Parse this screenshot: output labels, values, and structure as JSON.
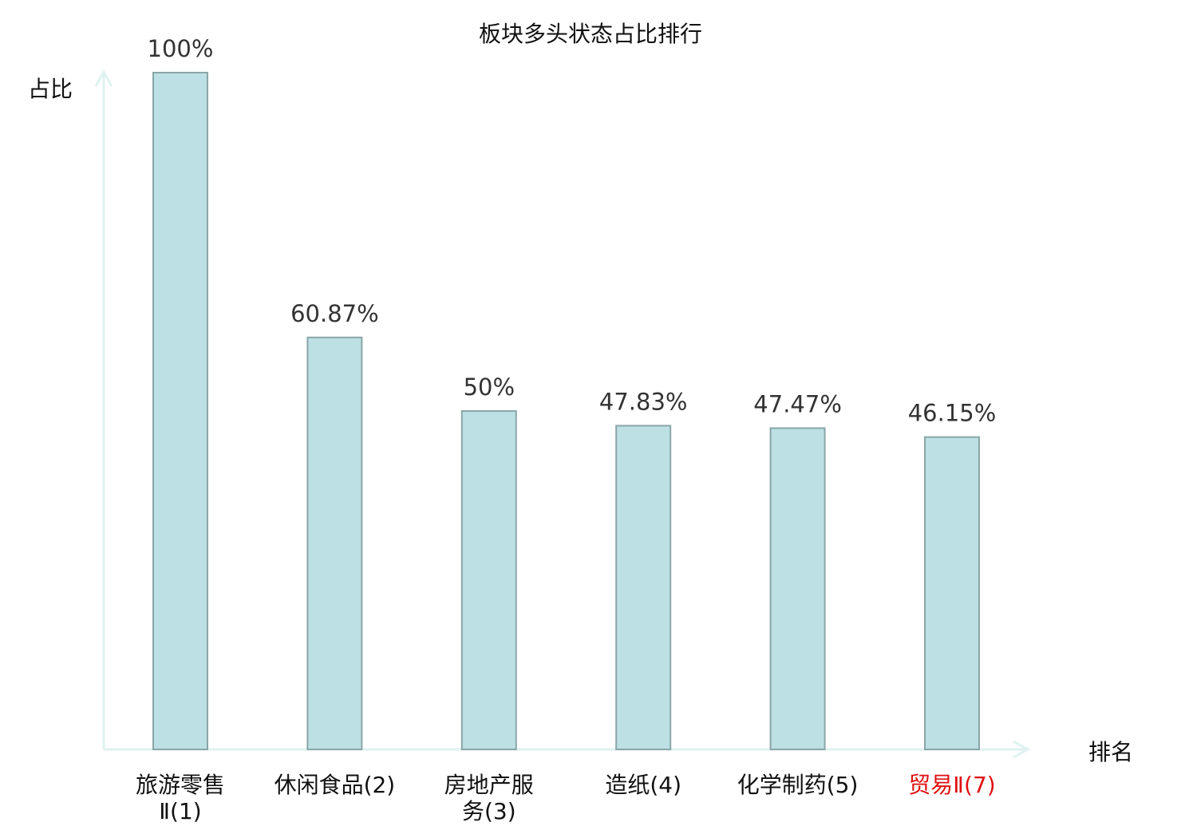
{
  "chart_data": {
    "type": "bar",
    "title": "板块多头状态占比排行",
    "xlabel": "排名",
    "ylabel": "占比",
    "categories": [
      [
        "旅游零售",
        "Ⅱ(1)"
      ],
      [
        "休闲食品(2)"
      ],
      [
        "房地产服",
        "务(3)"
      ],
      [
        "造纸(4)"
      ],
      [
        "化学制药(5)"
      ],
      [
        "贸易Ⅱ(7)"
      ]
    ],
    "values": [
      100,
      60.87,
      50,
      47.83,
      47.47,
      46.15
    ],
    "data_labels": [
      "100%",
      "60.87%",
      "50%",
      "47.83%",
      "47.47%",
      "46.15%"
    ],
    "highlight_index": 5,
    "ylim": [
      0,
      100
    ],
    "grid": false,
    "colors": {
      "bar_fill": "#bce0e3",
      "bar_stroke": "#8aa6a8",
      "axis": "#dff2f0",
      "highlight_label": "#e01010",
      "label": "#111111"
    }
  }
}
